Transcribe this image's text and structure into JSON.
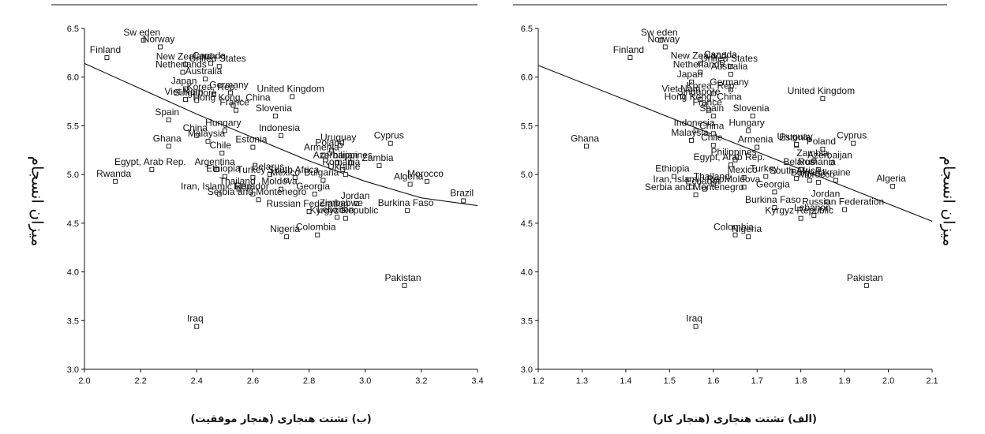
{
  "chart_data": [
    {
      "type": "scatter",
      "title": "",
      "caption": "(ب) تشتت هنجاری (هنجار موفقیت)",
      "xlabel": "",
      "ylabel": "میزان انسجام",
      "xlim": [
        2.0,
        3.4
      ],
      "ylim": [
        3.0,
        6.5
      ],
      "xticks": [
        "2.0",
        "2.2",
        "2.4",
        "2.6",
        "2.8",
        "3.0",
        "3.2",
        "3.4"
      ],
      "yticks": [
        "3.0",
        "3.5",
        "4.0",
        "4.5",
        "5.0",
        "5.5",
        "6.0",
        "6.5"
      ],
      "fit_curve": [
        [
          2.0,
          6.14
        ],
        [
          2.2,
          5.88
        ],
        [
          2.4,
          5.62
        ],
        [
          2.6,
          5.38
        ],
        [
          2.8,
          5.14
        ],
        [
          3.0,
          4.93
        ],
        [
          3.2,
          4.76
        ],
        [
          3.4,
          4.68
        ]
      ],
      "points": [
        {
          "label": "Sw eden",
          "x": 2.21,
          "y": 6.38
        },
        {
          "label": "Norway",
          "x": 2.27,
          "y": 6.31
        },
        {
          "label": "Finland",
          "x": 2.08,
          "y": 6.2
        },
        {
          "label": "New Zealand",
          "x": 2.36,
          "y": 6.13
        },
        {
          "label": "Canada",
          "x": 2.45,
          "y": 6.14
        },
        {
          "label": "United States",
          "x": 2.48,
          "y": 6.11
        },
        {
          "label": "Netherlands",
          "x": 2.35,
          "y": 6.05
        },
        {
          "label": "Australia",
          "x": 2.43,
          "y": 5.98
        },
        {
          "label": "Japan",
          "x": 2.36,
          "y": 5.88
        },
        {
          "label": "Germany",
          "x": 2.52,
          "y": 5.84
        },
        {
          "label": "Korea, Rep.",
          "x": 2.46,
          "y": 5.82
        },
        {
          "label": "Viet Nam",
          "x": 2.36,
          "y": 5.77
        },
        {
          "label": "Singapore",
          "x": 2.4,
          "y": 5.76
        },
        {
          "label": "United Kingdom",
          "x": 2.74,
          "y": 5.8
        },
        {
          "label": "Hong Kong, China",
          "x": 2.53,
          "y": 5.71
        },
        {
          "label": "France",
          "x": 2.54,
          "y": 5.66
        },
        {
          "label": "Slovenia",
          "x": 2.68,
          "y": 5.6
        },
        {
          "label": "Spain",
          "x": 2.3,
          "y": 5.56
        },
        {
          "label": "Ghana",
          "x": 2.3,
          "y": 5.29
        },
        {
          "label": "China",
          "x": 2.4,
          "y": 5.4
        },
        {
          "label": "Hungary",
          "x": 2.5,
          "y": 5.45
        },
        {
          "label": "Malaysia",
          "x": 2.44,
          "y": 5.34
        },
        {
          "label": "Indonesia",
          "x": 2.7,
          "y": 5.4
        },
        {
          "label": "Estonia",
          "x": 2.6,
          "y": 5.28
        },
        {
          "label": "Chile",
          "x": 2.49,
          "y": 5.22
        },
        {
          "label": "Cyprus",
          "x": 3.09,
          "y": 5.32
        },
        {
          "label": "Uruguay",
          "x": 2.91,
          "y": 5.3
        },
        {
          "label": "Poland",
          "x": 2.88,
          "y": 5.25
        },
        {
          "label": "Armenia",
          "x": 2.85,
          "y": 5.2
        },
        {
          "label": "Azerbaijan",
          "x": 2.9,
          "y": 5.12
        },
        {
          "label": "Philippines",
          "x": 2.95,
          "y": 5.12
        },
        {
          "label": "Zambia",
          "x": 3.05,
          "y": 5.09
        },
        {
          "label": "Romania",
          "x": 2.92,
          "y": 5.05
        },
        {
          "label": "Ukraine",
          "x": 2.93,
          "y": 5.0
        },
        {
          "label": "Egypt, Arab Rep.",
          "x": 2.24,
          "y": 5.05
        },
        {
          "label": "Argentina",
          "x": 2.47,
          "y": 5.05
        },
        {
          "label": "Rwanda",
          "x": 2.11,
          "y": 4.93
        },
        {
          "label": "Ethiopia",
          "x": 2.5,
          "y": 4.98
        },
        {
          "label": "Turkey",
          "x": 2.6,
          "y": 4.97
        },
        {
          "label": "Belarus",
          "x": 2.66,
          "y": 5.0
        },
        {
          "label": "South Africa",
          "x": 2.75,
          "y": 4.97
        },
        {
          "label": "Mexico",
          "x": 2.72,
          "y": 4.94
        },
        {
          "label": "Bulgaria",
          "x": 2.85,
          "y": 4.94
        },
        {
          "label": "Thailand",
          "x": 2.55,
          "y": 4.85
        },
        {
          "label": "Iran, Islamic Rep.",
          "x": 2.48,
          "y": 4.8
        },
        {
          "label": "Ecuador",
          "x": 2.6,
          "y": 4.8
        },
        {
          "label": "Moldova",
          "x": 2.7,
          "y": 4.85
        },
        {
          "label": "Georgia",
          "x": 2.82,
          "y": 4.8
        },
        {
          "label": "Serbia and Montenegro",
          "x": 2.62,
          "y": 4.74
        },
        {
          "label": "Algeria",
          "x": 3.16,
          "y": 4.9
        },
        {
          "label": "Morocco",
          "x": 3.22,
          "y": 4.93
        },
        {
          "label": "Brazil",
          "x": 3.35,
          "y": 4.73
        },
        {
          "label": "Jordan",
          "x": 2.97,
          "y": 4.7
        },
        {
          "label": "Zimbabwe",
          "x": 2.92,
          "y": 4.63
        },
        {
          "label": "Burkina Faso",
          "x": 3.15,
          "y": 4.63
        },
        {
          "label": "Russian Federation",
          "x": 2.8,
          "y": 4.62
        },
        {
          "label": "Kyrgyz Republic",
          "x": 2.93,
          "y": 4.55
        },
        {
          "label": "Lebanon",
          "x": 2.9,
          "y": 4.56
        },
        {
          "label": "Colombia",
          "x": 2.83,
          "y": 4.38
        },
        {
          "label": "Nigeria",
          "x": 2.72,
          "y": 4.36
        },
        {
          "label": "Pakistan",
          "x": 3.14,
          "y": 3.86
        },
        {
          "label": "Iraq",
          "x": 2.4,
          "y": 3.44
        }
      ]
    },
    {
      "type": "scatter",
      "title": "",
      "caption": "(الف) تشتت هنجاری (هنجار کار)",
      "xlabel": "",
      "ylabel": "میزان انسجام",
      "xlim": [
        1.2,
        2.1
      ],
      "ylim": [
        3.0,
        6.5
      ],
      "xticks": [
        "1.2",
        "1.3",
        "1.4",
        "1.5",
        "1.6",
        "1.7",
        "1.8",
        "1.9",
        "2.0",
        "2.1"
      ],
      "yticks": [
        "3.0",
        "3.5",
        "4.0",
        "4.5",
        "5.0",
        "5.5",
        "6.0",
        "6.5"
      ],
      "fit_line": [
        [
          1.2,
          6.12
        ],
        [
          2.1,
          4.52
        ]
      ],
      "points": [
        {
          "label": "Sw eden",
          "x": 1.48,
          "y": 6.38
        },
        {
          "label": "Norway",
          "x": 1.49,
          "y": 6.31
        },
        {
          "label": "Finland",
          "x": 1.41,
          "y": 6.2
        },
        {
          "label": "New Zealand",
          "x": 1.57,
          "y": 6.14
        },
        {
          "label": "Canada",
          "x": 1.62,
          "y": 6.15
        },
        {
          "label": "United States",
          "x": 1.64,
          "y": 6.11
        },
        {
          "label": "Netherlands",
          "x": 1.57,
          "y": 6.05
        },
        {
          "label": "Australia",
          "x": 1.64,
          "y": 6.03
        },
        {
          "label": "Japan",
          "x": 1.55,
          "y": 5.95
        },
        {
          "label": "Germany",
          "x": 1.64,
          "y": 5.87
        },
        {
          "label": "Korea, Rep.",
          "x": 1.6,
          "y": 5.83
        },
        {
          "label": "Viet Nam",
          "x": 1.53,
          "y": 5.8
        },
        {
          "label": "Singapore",
          "x": 1.57,
          "y": 5.77
        },
        {
          "label": "United Kingdom",
          "x": 1.85,
          "y": 5.78
        },
        {
          "label": "Hong Kong, China",
          "x": 1.58,
          "y": 5.72
        },
        {
          "label": "France",
          "x": 1.59,
          "y": 5.66
        },
        {
          "label": "Spain",
          "x": 1.6,
          "y": 5.6
        },
        {
          "label": "Slovenia",
          "x": 1.69,
          "y": 5.6
        },
        {
          "label": "Ghana",
          "x": 1.31,
          "y": 5.29
        },
        {
          "label": "Indonesia",
          "x": 1.56,
          "y": 5.45
        },
        {
          "label": "Malaysia",
          "x": 1.55,
          "y": 5.35
        },
        {
          "label": "China",
          "x": 1.6,
          "y": 5.42
        },
        {
          "label": "Hungary",
          "x": 1.68,
          "y": 5.45
        },
        {
          "label": "Chile",
          "x": 1.6,
          "y": 5.3
        },
        {
          "label": "Cyprus",
          "x": 1.92,
          "y": 5.32
        },
        {
          "label": "Armenia",
          "x": 1.7,
          "y": 5.28
        },
        {
          "label": "Estonia",
          "x": 1.79,
          "y": 5.3
        },
        {
          "label": "Uruguay",
          "x": 1.79,
          "y": 5.31
        },
        {
          "label": "Poland",
          "x": 1.85,
          "y": 5.26
        },
        {
          "label": "Philippines",
          "x": 1.65,
          "y": 5.15
        },
        {
          "label": "Egypt, Arab Rep.",
          "x": 1.64,
          "y": 5.1
        },
        {
          "label": "Zambia",
          "x": 1.83,
          "y": 5.14
        },
        {
          "label": "Azerbaijan",
          "x": 1.87,
          "y": 5.12
        },
        {
          "label": "Belarus",
          "x": 1.8,
          "y": 5.05
        },
        {
          "label": "Romania",
          "x": 1.84,
          "y": 5.05
        },
        {
          "label": "Ethiopia",
          "x": 1.51,
          "y": 4.98
        },
        {
          "label": "Thailand",
          "x": 1.6,
          "y": 4.9
        },
        {
          "label": "Mexico",
          "x": 1.67,
          "y": 4.97
        },
        {
          "label": "Turkey",
          "x": 1.72,
          "y": 4.98
        },
        {
          "label": "South Africa",
          "x": 1.79,
          "y": 4.96
        },
        {
          "label": "Bulgaria",
          "x": 1.82,
          "y": 4.94
        },
        {
          "label": "Ukraine",
          "x": 1.88,
          "y": 4.94
        },
        {
          "label": "Morocco",
          "x": 1.84,
          "y": 4.92
        },
        {
          "label": "Algeria",
          "x": 2.01,
          "y": 4.88
        },
        {
          "label": "Iran, Islamic Rep.",
          "x": 1.55,
          "y": 4.87
        },
        {
          "label": "Ecuador",
          "x": 1.58,
          "y": 4.85
        },
        {
          "label": "Moldova",
          "x": 1.67,
          "y": 4.87
        },
        {
          "label": "Serbia and Montenegro",
          "x": 1.56,
          "y": 4.79
        },
        {
          "label": "Georgia",
          "x": 1.74,
          "y": 4.82
        },
        {
          "label": "Jordan",
          "x": 1.86,
          "y": 4.72
        },
        {
          "label": "Burkina Faso",
          "x": 1.74,
          "y": 4.66
        },
        {
          "label": "Russian Federation",
          "x": 1.9,
          "y": 4.64
        },
        {
          "label": "Kyrgyz Republic",
          "x": 1.8,
          "y": 4.55
        },
        {
          "label": "Lebanon",
          "x": 1.83,
          "y": 4.58
        },
        {
          "label": "Colombia",
          "x": 1.65,
          "y": 4.38
        },
        {
          "label": "Nigeria",
          "x": 1.68,
          "y": 4.36
        },
        {
          "label": "Pakistan",
          "x": 1.95,
          "y": 3.86
        },
        {
          "label": "Iraq",
          "x": 1.56,
          "y": 3.44
        }
      ]
    }
  ]
}
